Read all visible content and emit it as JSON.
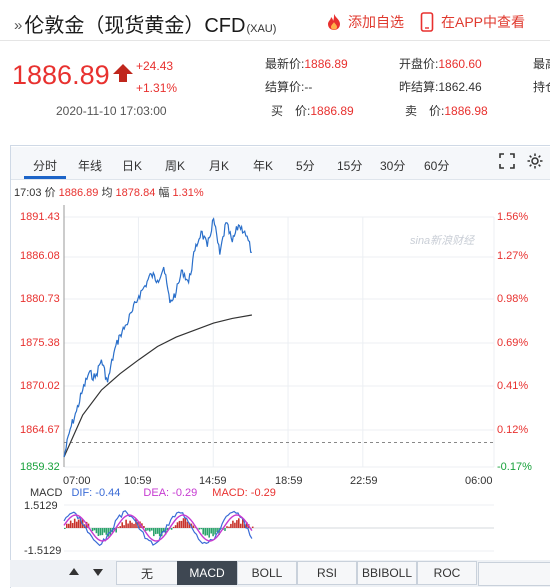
{
  "header": {
    "title_prefix": "»",
    "title": "伦敦金（现货黄金）CFD",
    "title_sub": "(XAU)",
    "add_watchlist": "添加自选",
    "view_in_app": "在APP中查看"
  },
  "quote": {
    "price": "1886.89",
    "change": "+24.43",
    "change_pct": "+1.31%",
    "time": "2020-11-10 17:03:00",
    "fields": [
      {
        "label": "最新价:",
        "value": "1886.89"
      },
      {
        "label": "结算价:",
        "value": "--"
      },
      {
        "label": "买　价:",
        "value": "1886.89"
      },
      {
        "label": "开盘价:",
        "value": "1860.60"
      },
      {
        "label": "昨结算:",
        "value": "1862.46"
      },
      {
        "label": "卖　价:",
        "value": "1886.98"
      },
      {
        "label": "最高",
        "value": ""
      },
      {
        "label": "持仓",
        "value": ""
      }
    ]
  },
  "tabs": [
    "分时",
    "年线",
    "日K",
    "周K",
    "月K",
    "年K",
    "5分",
    "15分",
    "30分",
    "60分"
  ],
  "info_line": {
    "time": "17:03",
    "price_label": "价",
    "price": "1886.89",
    "avg_label": "均",
    "avg": "1878.84",
    "amp_label": "幅",
    "amp": "1.31%"
  },
  "watermark": "sina新浪财经",
  "macd": {
    "label": "MACD",
    "dif": "DIF: -0.44",
    "dea": "DEA: -0.29",
    "macd": "MACD: -0.29",
    "top": "1.5129",
    "bottom": "-1.5129"
  },
  "bottom_tabs": [
    "无",
    "MACD",
    "BOLL",
    "RSI",
    "BBIBOLL",
    "ROC"
  ],
  "colors": {
    "up": "#e8312f",
    "down": "#18a13b",
    "price_line": "#2a6fca",
    "avg_line": "#333333",
    "dif": "#3a6bd6",
    "dea": "#c63ad1"
  },
  "chart_data": {
    "type": "line",
    "title": "",
    "x_ticks": [
      "07:00",
      "10:59",
      "14:59",
      "18:59",
      "22:59",
      "06:00"
    ],
    "y_ticks": [
      "1891.43",
      "1886.08",
      "1880.73",
      "1875.38",
      "1870.02",
      "1864.67",
      "1859.32"
    ],
    "y_pct_ticks": [
      "1.56%",
      "1.27%",
      "0.98%",
      "0.69%",
      "0.41%",
      "0.12%",
      "-0.17%"
    ],
    "ylim": [
      1859.32,
      1891.43
    ],
    "prev_settle": 1862.46,
    "series": [
      {
        "x": [
          "07:00",
          "07:20",
          "07:40",
          "08:00",
          "08:20",
          "08:40",
          "09:00",
          "09:20",
          "09:40",
          "10:00",
          "10:20",
          "10:40",
          "11:00",
          "11:20",
          "11:40",
          "12:00",
          "12:20",
          "12:40",
          "13:00",
          "13:20",
          "13:40",
          "14:00",
          "14:20",
          "14:40",
          "15:00",
          "15:20",
          "15:40",
          "16:00",
          "16:20",
          "16:40",
          "17:03"
        ],
        "values": [
          1860.6,
          1864.2,
          1866.5,
          1869.2,
          1871.4,
          1870.8,
          1873.1,
          1870.2,
          1874.0,
          1876.3,
          1877.6,
          1879.4,
          1881.3,
          1882.6,
          1884.1,
          1883.3,
          1885.0,
          1880.4,
          1881.8,
          1884.6,
          1883.0,
          1887.1,
          1889.6,
          1887.6,
          1891.2,
          1886.6,
          1890.7,
          1888.2,
          1890.4,
          1889.6,
          1886.89
        ]
      },
      {
        "x": [
          "07:00",
          "08:00",
          "09:00",
          "10:00",
          "11:00",
          "12:00",
          "13:00",
          "14:00",
          "15:00",
          "16:00",
          "17:03"
        ],
        "values": [
          1860.6,
          1866.0,
          1869.2,
          1871.3,
          1873.1,
          1874.8,
          1876.0,
          1876.9,
          1877.8,
          1878.4,
          1878.84
        ]
      }
    ]
  }
}
